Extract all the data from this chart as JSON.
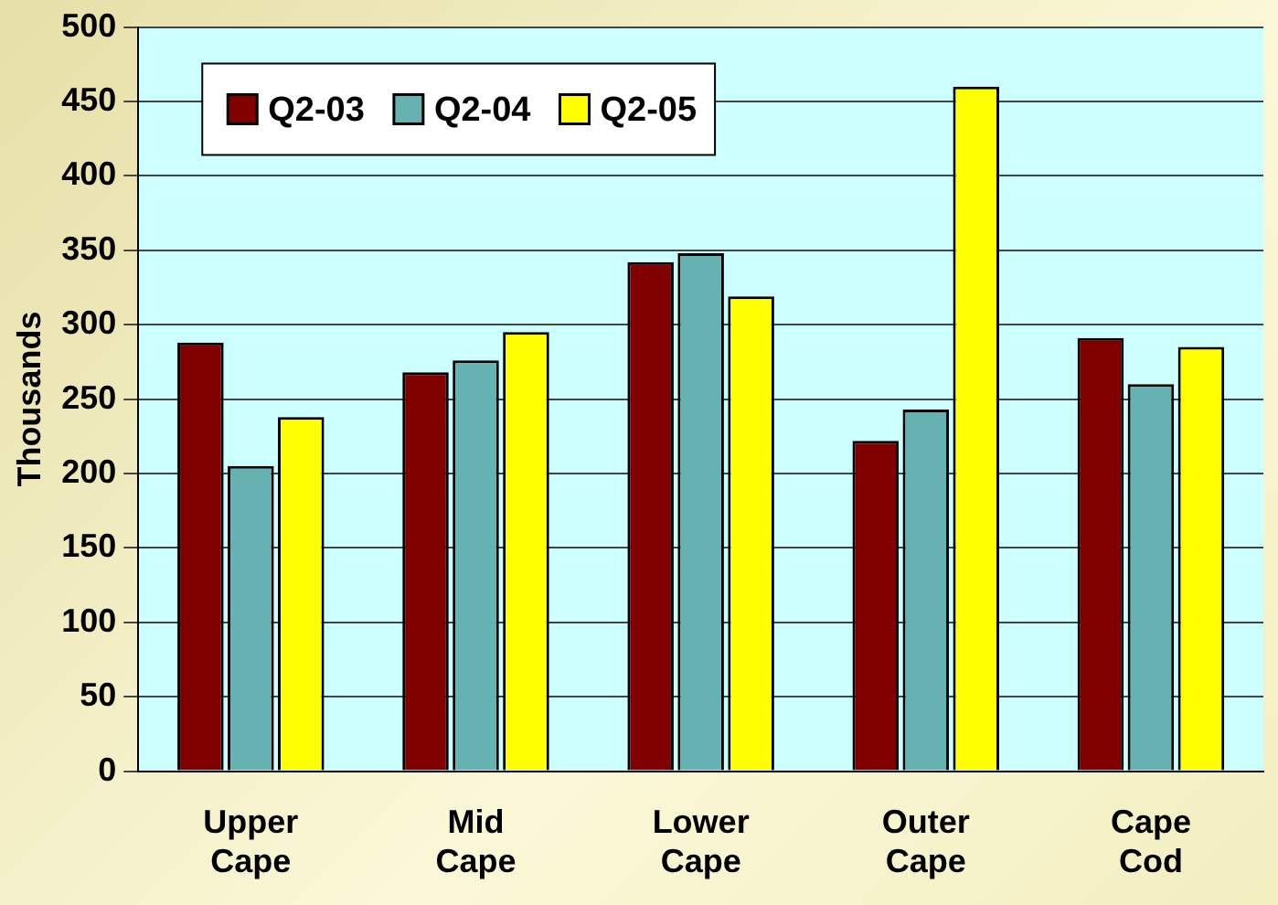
{
  "chart_data": {
    "type": "bar",
    "ylabel": "Thousands",
    "categories": [
      "Upper Cape",
      "Mid Cape",
      "Lower Cape",
      "Outer Cape",
      "Cape Cod"
    ],
    "series": [
      {
        "name": "Q2-03",
        "color": "#800000",
        "values": [
          288,
          268,
          342,
          222,
          291
        ]
      },
      {
        "name": "Q2-04",
        "color": "#66b2b2",
        "values": [
          205,
          276,
          348,
          243,
          260
        ]
      },
      {
        "name": "Q2-05",
        "color": "#ffff00",
        "values": [
          238,
          295,
          319,
          460,
          285
        ]
      }
    ],
    "ylim": [
      0,
      500
    ],
    "yticks": [
      0,
      50,
      100,
      150,
      200,
      250,
      300,
      350,
      400,
      450,
      500
    ],
    "grid": "y",
    "legend": "top left"
  }
}
